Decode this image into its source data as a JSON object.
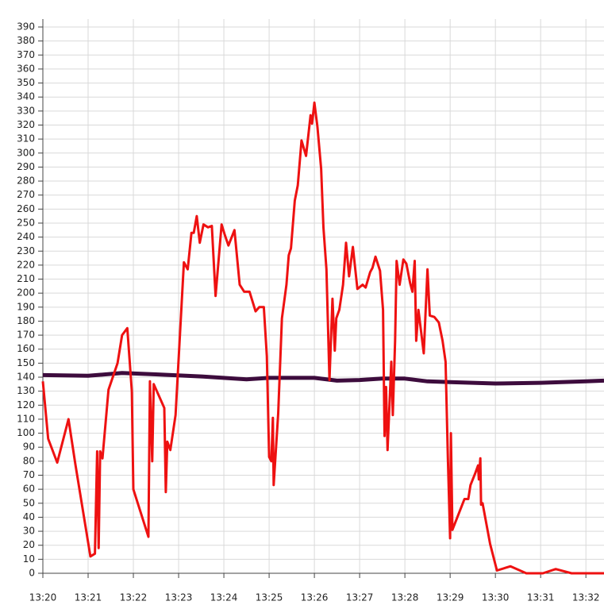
{
  "chart_data": {
    "type": "line",
    "grid": true,
    "xlim": [
      "13:20:00",
      "13:32:24"
    ],
    "xticks": [
      "13:20",
      "13:21",
      "13:22",
      "13:23",
      "13:24",
      "13:25",
      "13:26",
      "13:27",
      "13:28",
      "13:29",
      "13:30",
      "13:31",
      "13:32"
    ],
    "ylim": [
      0,
      390
    ],
    "yticks": [
      0,
      10,
      20,
      30,
      40,
      50,
      60,
      70,
      80,
      90,
      100,
      110,
      120,
      130,
      140,
      150,
      160,
      170,
      180,
      190,
      200,
      210,
      220,
      230,
      240,
      250,
      260,
      270,
      280,
      290,
      300,
      310,
      320,
      330,
      340,
      350,
      360,
      370,
      380,
      390
    ],
    "series": [
      {
        "color": "#ee1111",
        "width": 3,
        "x": [
          "13:20:00",
          "13:20:07",
          "13:20:19",
          "13:20:34",
          "13:20:43",
          "13:21:03",
          "13:21:09",
          "13:21:12",
          "13:21:14",
          "13:21:16",
          "13:21:19",
          "13:21:27",
          "13:21:39",
          "13:21:45",
          "13:21:52",
          "13:21:58",
          "13:22:00",
          "13:22:20",
          "13:22:22",
          "13:22:25",
          "13:22:27",
          "13:22:41",
          "13:22:43",
          "13:22:45",
          "13:22:49",
          "13:22:56",
          "13:23:07",
          "13:23:12",
          "13:23:17",
          "13:23:20",
          "13:23:24",
          "13:23:28",
          "13:23:33",
          "13:23:39",
          "13:23:44",
          "13:23:49",
          "13:23:57",
          "13:24:01",
          "13:24:06",
          "13:24:14",
          "13:24:21",
          "13:24:27",
          "13:24:34",
          "13:24:42",
          "13:24:47",
          "13:24:53",
          "13:24:57",
          "13:25:00",
          "13:25:03",
          "13:25:05",
          "13:25:06",
          "13:25:12",
          "13:25:17",
          "13:25:23",
          "13:25:26",
          "13:25:29",
          "13:25:34",
          "13:25:38",
          "13:25:43",
          "13:25:49",
          "13:25:55",
          "13:25:57",
          "13:26:00",
          "13:26:04",
          "13:26:09",
          "13:26:12",
          "13:26:16",
          "13:26:20",
          "13:26:24",
          "13:26:27",
          "13:26:29",
          "13:26:33",
          "13:26:38",
          "13:26:42",
          "13:26:46",
          "13:26:51",
          "13:26:57",
          "13:27:04",
          "13:27:08",
          "13:27:14",
          "13:27:17",
          "13:27:21",
          "13:27:27",
          "13:27:31",
          "13:27:33",
          "13:27:35",
          "13:27:37",
          "13:27:42",
          "13:27:44",
          "13:27:47",
          "13:27:49",
          "13:27:53",
          "13:27:58",
          "13:28:02",
          "13:28:07",
          "13:28:10",
          "13:28:13",
          "13:28:15",
          "13:28:18",
          "13:28:25",
          "13:28:30",
          "13:28:33",
          "13:28:39",
          "13:28:45",
          "13:28:50",
          "13:28:54",
          "13:28:57",
          "13:29:00",
          "13:29:01",
          "13:29:03",
          "13:29:19",
          "13:29:24",
          "13:29:27",
          "13:29:33",
          "13:29:37",
          "13:29:38",
          "13:29:40",
          "13:29:41",
          "13:29:43",
          "13:29:53",
          "13:30:02",
          "13:30:20",
          "13:30:41",
          "13:31:03",
          "13:31:20",
          "13:31:41",
          "13:32:24"
        ],
        "values": [
          137,
          96,
          79,
          110,
          78,
          12,
          14,
          87,
          18,
          87,
          82,
          131,
          150,
          170,
          175,
          130,
          60,
          26,
          137,
          80,
          135,
          118,
          58,
          94,
          88,
          113,
          222,
          217,
          243,
          243,
          255,
          236,
          249,
          247,
          248,
          198,
          249,
          242,
          234,
          245,
          206,
          201,
          201,
          187,
          190,
          190,
          155,
          83,
          80,
          111,
          63,
          114,
          182,
          206,
          227,
          232,
          266,
          277,
          309,
          298,
          327,
          321,
          336,
          319,
          289,
          247,
          217,
          138,
          196,
          159,
          182,
          188,
          206,
          236,
          212,
          233,
          203,
          206,
          204,
          215,
          218,
          226,
          216,
          188,
          98,
          133,
          88,
          151,
          113,
          166,
          223,
          206,
          224,
          221,
          207,
          201,
          223,
          166,
          188,
          157,
          217,
          184,
          183,
          179,
          166,
          151,
          82,
          25,
          100,
          31,
          53,
          53,
          63,
          71,
          77,
          67,
          82,
          49,
          50,
          21,
          2,
          5,
          0,
          0,
          3,
          0,
          0
        ]
      },
      {
        "color": "#3d0c3d",
        "width": 5,
        "x": [
          "13:20:00",
          "13:21:00",
          "13:21:45",
          "13:22:30",
          "13:23:30",
          "13:24:30",
          "13:25:00",
          "13:26:00",
          "13:26:30",
          "13:27:00",
          "13:27:30",
          "13:28:00",
          "13:28:30",
          "13:29:00",
          "13:30:00",
          "13:31:00",
          "13:32:00",
          "13:32:24"
        ],
        "values": [
          141.5,
          141,
          143,
          142,
          140.5,
          138.5,
          139.5,
          139.5,
          137.5,
          138,
          139,
          139,
          137,
          136.5,
          135.5,
          136,
          137,
          137.5
        ]
      }
    ]
  }
}
